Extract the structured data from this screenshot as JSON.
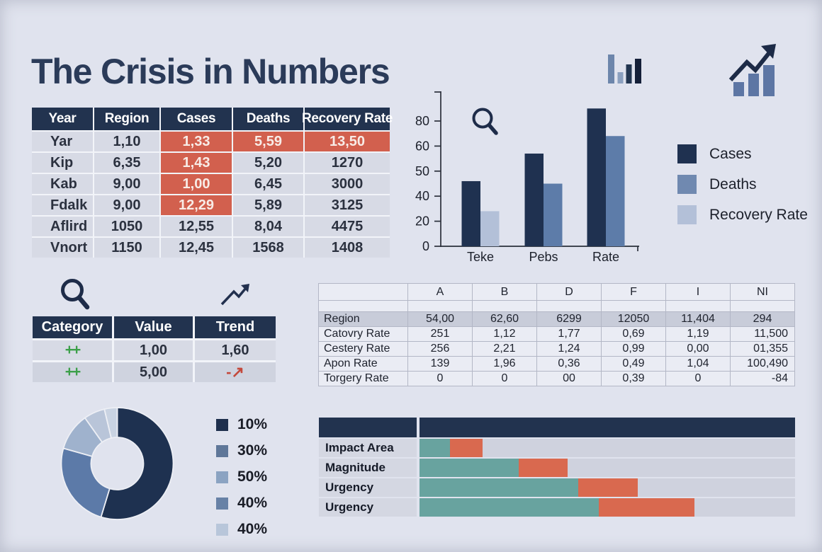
{
  "title": "The Crisis in Numbers",
  "colors": {
    "navy": "#22334f",
    "bar_navy": "#1f3150",
    "steel": "#5d7ca9",
    "light_steel": "#b3c0d8",
    "legend_steel": "#7089b0",
    "red_cell": "#d2604e",
    "teal": "#68a39f",
    "bar_red": "#d9694f"
  },
  "crisis_table": {
    "headers": [
      "Year",
      "Region",
      "Cases",
      "Deaths",
      "Recovery Rate"
    ],
    "rows": [
      {
        "cells": [
          "Yar",
          "1,10",
          "1,33",
          "5,59",
          "13,50"
        ],
        "red": [
          2,
          3,
          4
        ]
      },
      {
        "cells": [
          "Kip",
          "6,35",
          "1,43",
          "5,20",
          "1270"
        ],
        "red": [
          2
        ]
      },
      {
        "cells": [
          "Kab",
          "9,00",
          "1,00",
          "6,45",
          "3000"
        ],
        "red": [
          2
        ]
      },
      {
        "cells": [
          "Fdalk",
          "9,00",
          "12,29",
          "5,89",
          "3125"
        ],
        "red": [
          2
        ]
      },
      {
        "cells": [
          "Aflird",
          "1050",
          "12,55",
          "8,04",
          "4475"
        ],
        "red": []
      },
      {
        "cells": [
          "Vnort",
          "1150",
          "12,45",
          "1568",
          "1408"
        ],
        "red": []
      }
    ]
  },
  "chart_data": [
    {
      "id": "grouped_bar",
      "type": "bar",
      "categories": [
        "Teke",
        "Pebs",
        "Rate"
      ],
      "series": [
        {
          "name": "Cases",
          "values": [
            46,
            57,
            90
          ]
        },
        {
          "name": "Deaths",
          "values": [
            28,
            45,
            68
          ]
        }
      ],
      "second_bar_palette": [
        "light_steel",
        "steel",
        "steel"
      ],
      "yticks": [
        0,
        20,
        40,
        50,
        60,
        80
      ],
      "ylim": [
        0,
        90
      ],
      "grid": false,
      "legend": [
        "Cases",
        "Deaths",
        "Recovery Rate"
      ],
      "legend_position": "right"
    },
    {
      "id": "category_table",
      "type": "table",
      "headers": [
        "Category",
        "Value",
        "Trend"
      ],
      "rows": [
        {
          "category": "++",
          "value": "1,00",
          "trend": "1,60",
          "trend_kind": "text"
        },
        {
          "category": "++",
          "value": "5,00",
          "trend": "-↗",
          "trend_kind": "red-arrow"
        }
      ]
    },
    {
      "id": "spreadsheet",
      "type": "table",
      "columns": [
        "",
        "A",
        "B",
        "D",
        "F",
        "I",
        "NI"
      ],
      "rows": [
        {
          "label": "Region",
          "values": [
            "54,00",
            "62,60",
            "6299",
            "12050",
            "11,404",
            "294"
          ],
          "shaded": true
        },
        {
          "label": "Catovry Rate",
          "values": [
            "251",
            "1,12",
            "1,77",
            "0,69",
            "1,19",
            "11,500"
          ]
        },
        {
          "label": "Cestery Rate",
          "values": [
            "256",
            "2,21",
            "1,24",
            "0,99",
            "0,00",
            "01,355"
          ]
        },
        {
          "label": "Apon Rate",
          "values": [
            "139",
            "1,96",
            "0,36",
            "0,49",
            "1,04",
            "100,490"
          ]
        },
        {
          "label": "Torgery Rate",
          "values": [
            "0",
            "0",
            "00",
            "0,39",
            "0",
            "-84"
          ]
        }
      ]
    },
    {
      "id": "donut",
      "type": "pie",
      "values": [
        54.7,
        24.7,
        10.8,
        6.1,
        3.7
      ],
      "slice_colors": [
        "#1e3150",
        "#5c7aa8",
        "#9fb2cd",
        "#b9c5d9",
        "#c9d3e2"
      ],
      "legend_labels": [
        "10%",
        "30%",
        "50%",
        "40%",
        "40%"
      ],
      "legend_colors": [
        "#1e2f4d",
        "#5f7799",
        "#8ba3c2",
        "#6781a6",
        "#b8c6da"
      ],
      "legend_position": "right"
    },
    {
      "id": "impact_bars",
      "type": "stacked_bar_horizontal",
      "categories": [
        "Impact Area",
        "Magnitude",
        "Urgency",
        "Urgency"
      ],
      "series": [
        {
          "name": "primary",
          "values": [
            8.1,
            26.4,
            42.3,
            47.7
          ]
        },
        {
          "name": "secondary",
          "values": [
            8.7,
            13.0,
            15.8,
            25.5
          ]
        }
      ],
      "track_max": 100
    }
  ]
}
